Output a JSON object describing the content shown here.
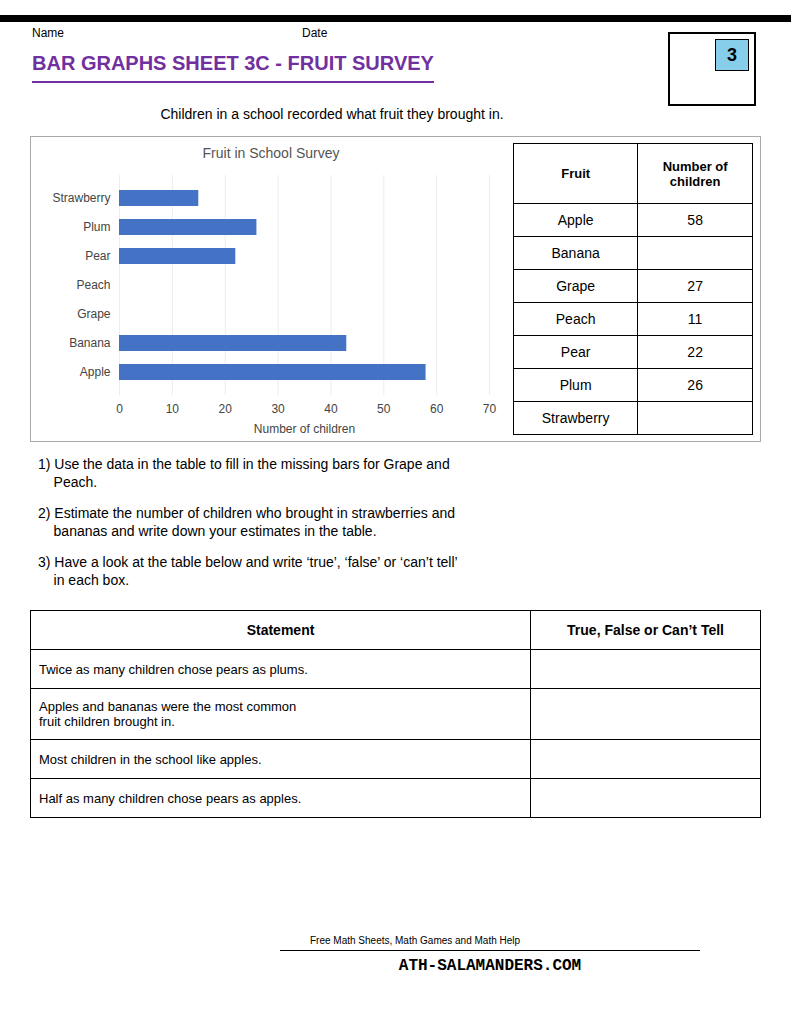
{
  "title": "BAR GRAPHS SHEET 3C - FRUIT SURVEY",
  "title_color": "#7030A0",
  "subtitle": "Children in a school recorded what fruit they brought in.",
  "name_label": "Name",
  "date_label": "Date",
  "logo_text": "3",
  "chart_data": {
    "type": "bar",
    "orientation": "horizontal",
    "title": "Fruit in School Survey",
    "categories": [
      "Apple",
      "Banana",
      "Grape",
      "Peach",
      "Pear",
      "Plum",
      "Strawberry"
    ],
    "values": [
      58,
      43,
      0,
      0,
      22,
      26,
      15
    ],
    "color": "#4472C4",
    "xlabel": "Number of children",
    "xlim": [
      0,
      70
    ],
    "xticks": [
      0,
      10,
      20,
      30,
      40,
      50,
      60,
      70
    ],
    "grid": true
  },
  "table_fruits": [
    "Fruit",
    "Apple",
    "Banana",
    "Grape",
    "Peach",
    "Pear",
    "Plum",
    "Strawberry"
  ],
  "table_values": [
    "Number of\nchildren",
    "58",
    "",
    "27",
    "11",
    "22",
    "26",
    ""
  ],
  "questions": [
    "1) Use the data in the table to fill in the missing bars for Grape and\n    Peach.",
    "2) Estimate the number of children who brought in strawberries and\n    bananas and write down your estimates in the table.",
    "3) Have a look at the table below and write ‘true’, ‘false’ or ‘can’t tell’\n    in each box."
  ],
  "statement_headers": [
    "Statement",
    "True, False or Can’t Tell"
  ],
  "statements": [
    "Twice as many children chose pears as plums.",
    "Apples and bananas were the most common\nfruit children brought in.",
    "Most children in the school like apples.",
    "Half as many children chose pears as apples."
  ],
  "footer_text": "Free Math Sheets, Math Games and Math Help",
  "footer_site": "ATH-SALAMANDERS.COM"
}
